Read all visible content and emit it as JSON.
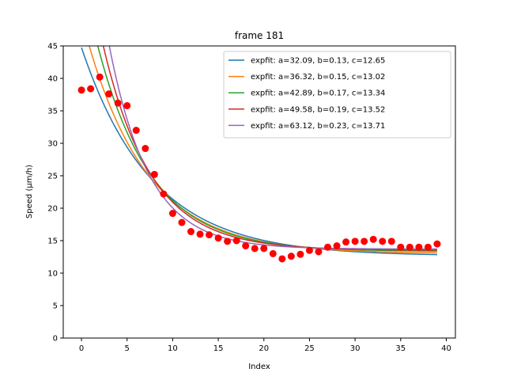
{
  "chart_data": {
    "type": "scatter",
    "title": "frame 181",
    "xlabel": "Index",
    "ylabel": "Speed (μm/h)",
    "xlim": [
      -2,
      41
    ],
    "ylim": [
      0,
      45
    ],
    "xticks": [
      0,
      5,
      10,
      15,
      20,
      25,
      30,
      35,
      40
    ],
    "yticks": [
      0,
      5,
      10,
      15,
      20,
      25,
      30,
      35,
      40,
      45
    ],
    "grid": false,
    "legend_position": "upper right",
    "points": {
      "color": "#ff0000",
      "x": [
        0,
        1,
        2,
        3,
        4,
        5,
        6,
        7,
        8,
        9,
        10,
        11,
        12,
        13,
        14,
        15,
        16,
        17,
        18,
        19,
        20,
        21,
        22,
        23,
        24,
        25,
        26,
        27,
        28,
        29,
        30,
        31,
        32,
        33,
        34,
        35,
        36,
        37,
        38,
        39
      ],
      "y": [
        38.2,
        38.4,
        40.2,
        37.6,
        36.2,
        35.8,
        32.0,
        29.2,
        25.2,
        22.2,
        19.2,
        17.8,
        16.4,
        16.0,
        15.9,
        15.4,
        14.9,
        15.0,
        14.2,
        13.8,
        13.8,
        13.0,
        12.2,
        12.6,
        12.9,
        13.5,
        13.3,
        14.0,
        14.2,
        14.8,
        14.9,
        14.9,
        15.2,
        14.9,
        14.9,
        14.0,
        14.0,
        14.0,
        14.0,
        14.5
      ]
    },
    "series": [
      {
        "name": "expfit: a=32.09, b=0.13, c=12.65",
        "color": "#1f77b4",
        "a": 32.09,
        "b": 0.13,
        "c": 12.65
      },
      {
        "name": "expfit: a=36.32, b=0.15, c=13.02",
        "color": "#ff7f0e",
        "a": 36.32,
        "b": 0.15,
        "c": 13.02
      },
      {
        "name": "expfit: a=42.89, b=0.17, c=13.34",
        "color": "#2ca02c",
        "a": 42.89,
        "b": 0.17,
        "c": 13.34
      },
      {
        "name": "expfit: a=49.58, b=0.19, c=13.52",
        "color": "#d62728",
        "a": 49.58,
        "b": 0.19,
        "c": 13.52
      },
      {
        "name": "expfit: a=63.12, b=0.23, c=13.71",
        "color": "#9467bd",
        "a": 63.12,
        "b": 0.23,
        "c": 13.71
      }
    ]
  }
}
